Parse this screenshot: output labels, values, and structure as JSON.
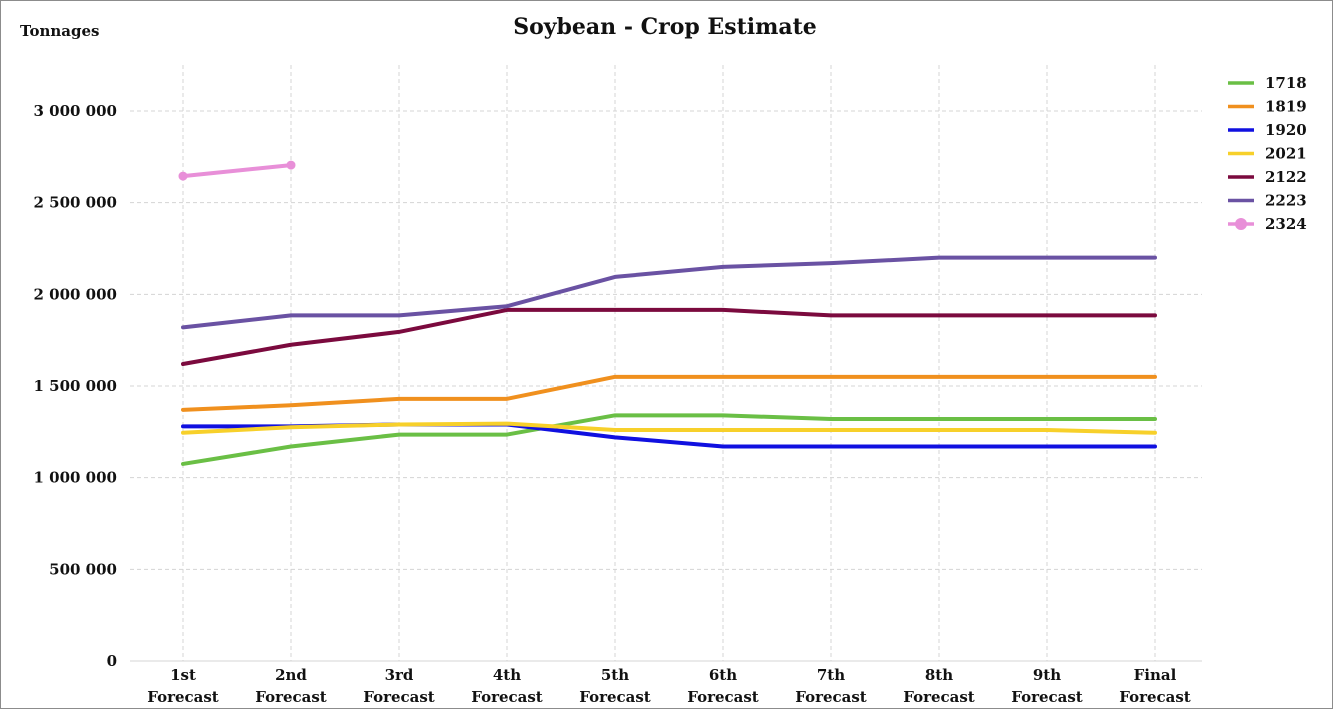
{
  "chart_data": {
    "type": "line",
    "title": "Soybean - Crop Estimate",
    "ylabel": "Tonnages",
    "xlabel": "",
    "categories": [
      "1st Forecast",
      "2nd Forecast",
      "3rd Forecast",
      "4th Forecast",
      "5th Forecast",
      "6th Forecast",
      "7th Forecast",
      "8th Forecast",
      "9th Forecast",
      "Final Forecast"
    ],
    "ylim": [
      0,
      3250000
    ],
    "yticks": [
      0,
      500000,
      1000000,
      1500000,
      2000000,
      2500000,
      3000000
    ],
    "ytick_labels": [
      "0",
      "500 000",
      "1 000 000",
      "1 500 000",
      "2 000 000",
      "2 500 000",
      "3 000 000"
    ],
    "grid": true,
    "legend_position": "right",
    "series": [
      {
        "name": "1718",
        "color": "#6abf45",
        "markers": false,
        "values": [
          1075000,
          1170000,
          1235000,
          1235000,
          1340000,
          1340000,
          1320000,
          1320000,
          1320000,
          1320000
        ]
      },
      {
        "name": "1819",
        "color": "#f0901e",
        "markers": false,
        "values": [
          1370000,
          1395000,
          1430000,
          1430000,
          1550000,
          1550000,
          1550000,
          1550000,
          1550000,
          1550000
        ]
      },
      {
        "name": "1920",
        "color": "#1010e0",
        "markers": false,
        "values": [
          1280000,
          1280000,
          1290000,
          1290000,
          1220000,
          1170000,
          1170000,
          1170000,
          1170000,
          1170000
        ]
      },
      {
        "name": "2021",
        "color": "#f7d02a",
        "markers": false,
        "values": [
          1245000,
          1275000,
          1290000,
          1295000,
          1260000,
          1260000,
          1260000,
          1260000,
          1260000,
          1245000
        ]
      },
      {
        "name": "2122",
        "color": "#7b0a3e",
        "markers": false,
        "values": [
          1620000,
          1725000,
          1795000,
          1915000,
          1915000,
          1915000,
          1885000,
          1885000,
          1885000,
          1885000
        ]
      },
      {
        "name": "2223",
        "color": "#6a52a3",
        "markers": false,
        "values": [
          1820000,
          1885000,
          1885000,
          1935000,
          2095000,
          2150000,
          2170000,
          2200000,
          2200000,
          2200000
        ]
      },
      {
        "name": "2324",
        "color": "#e88fd8",
        "markers": true,
        "values": [
          2645000,
          2705000,
          null,
          null,
          null,
          null,
          null,
          null,
          null,
          null
        ]
      }
    ]
  }
}
